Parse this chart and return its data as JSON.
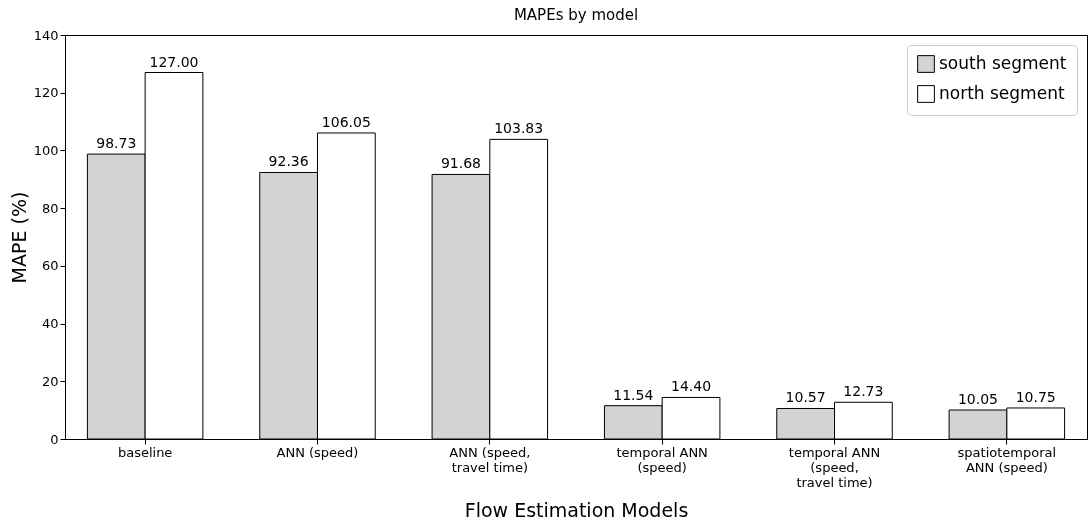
{
  "chart_data": {
    "type": "bar",
    "title": "MAPEs by model",
    "xlabel": "Flow Estimation Models",
    "ylabel": "MAPE (%)",
    "categories": [
      "baseline",
      "ANN (speed)",
      "ANN (speed,\ntravel time)",
      "temporal ANN\n(speed)",
      "temporal ANN\n(speed,\ntravel time)",
      "spatiotemporal\nANN (speed)"
    ],
    "series": [
      {
        "name": "south segment",
        "color": "#d3d3d3",
        "values": [
          98.73,
          92.36,
          91.68,
          11.54,
          10.57,
          10.05
        ],
        "value_labels": [
          "98.73",
          "92.36",
          "91.68",
          "11.54",
          "10.57",
          "10.05"
        ]
      },
      {
        "name": "north segment",
        "color": "#ffffff",
        "values": [
          127.0,
          106.05,
          103.83,
          14.4,
          12.73,
          10.75
        ],
        "value_labels": [
          "127.00",
          "106.05",
          "103.83",
          "14.40",
          "12.73",
          "10.75"
        ]
      }
    ],
    "ylim": [
      0,
      140
    ],
    "yticks": [
      0,
      20,
      40,
      60,
      80,
      100,
      120,
      140
    ],
    "grid": false,
    "legend": "top right"
  }
}
